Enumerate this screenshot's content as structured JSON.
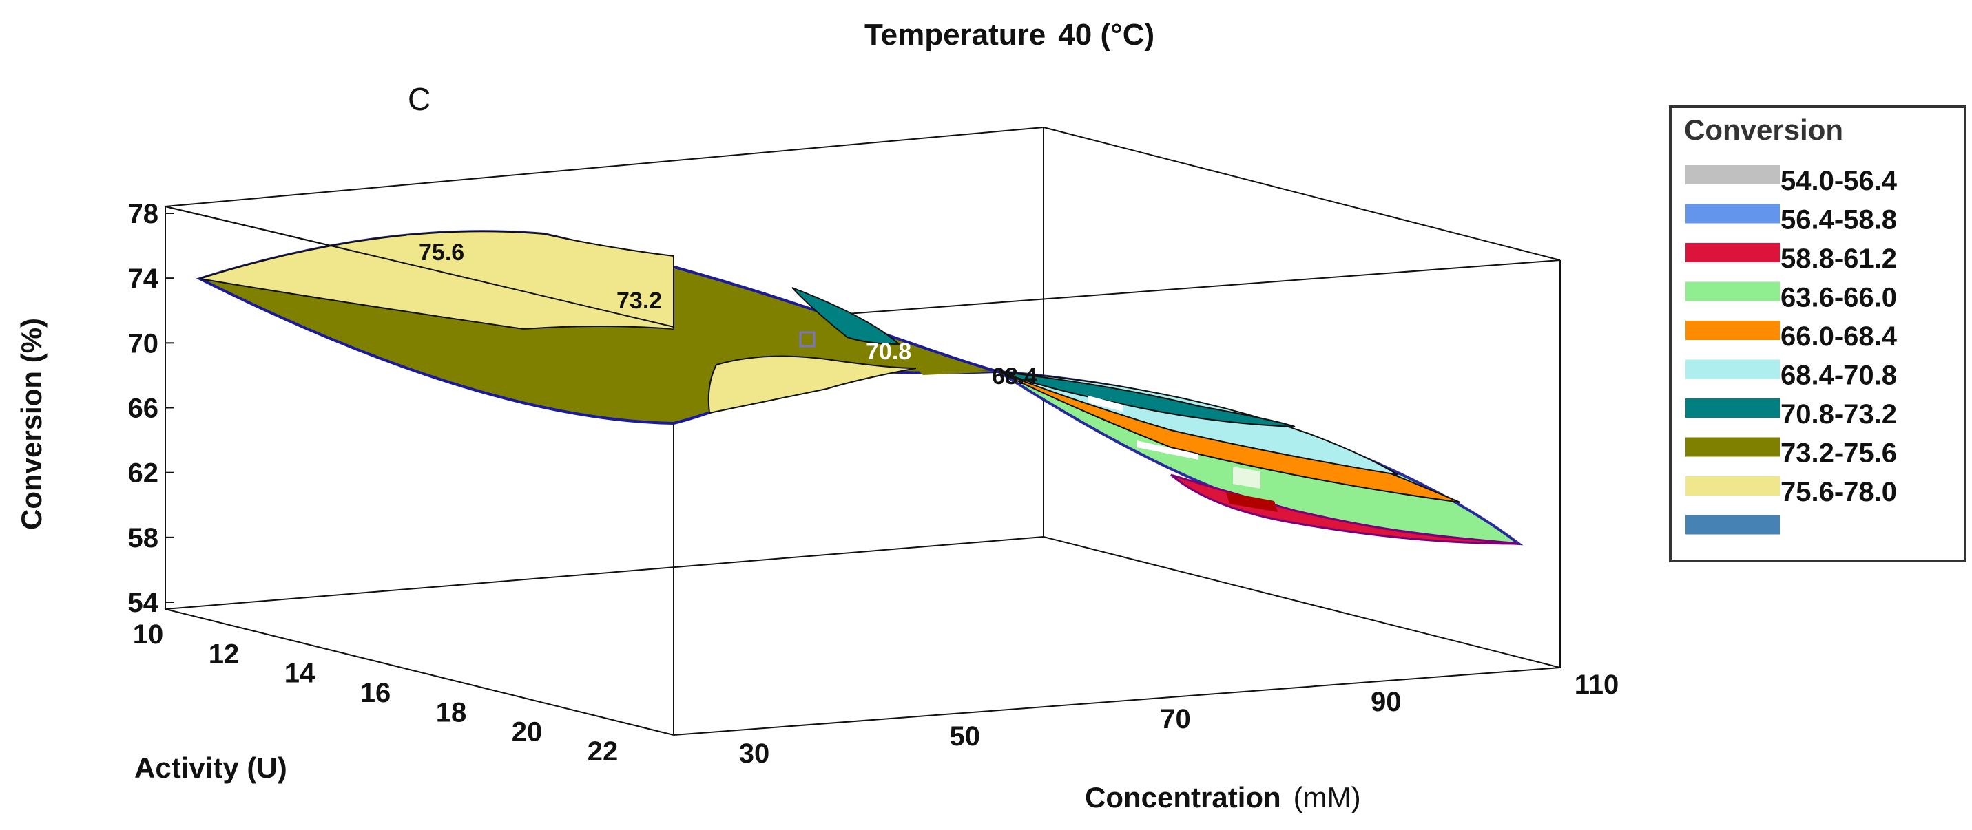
{
  "chart_data": {
    "type": "surface",
    "title_prefix": "Temperature",
    "title_value": "40 (°C)",
    "panel_label": "C",
    "zlabel": "Conversion (%)",
    "xlabel": "Activity (U)",
    "ylabel": "Concentration",
    "ylabel_unit": "(mM)",
    "zlim": [
      54,
      78
    ],
    "xlim": [
      10,
      22
    ],
    "ylim": [
      30,
      110
    ],
    "z_ticks": [
      "78",
      "74",
      "70",
      "66",
      "62",
      "58",
      "54"
    ],
    "x_ticks": [
      "10",
      "12",
      "14",
      "16",
      "18",
      "20",
      "22"
    ],
    "y_ticks": [
      "30",
      "50",
      "70",
      "90",
      "110"
    ],
    "contour_labels": [
      "75.6",
      "73.2",
      "70.8",
      "68.4"
    ],
    "legend": {
      "title": "Conversion",
      "entries": [
        {
          "range": "54.0-56.4",
          "color": "#c0c0c0"
        },
        {
          "range": "56.4-58.8",
          "color": "#6495ed"
        },
        {
          "range": "58.8-61.2",
          "color": "#dc143c"
        },
        {
          "range": "63.6-66.0",
          "color": "#90ee90"
        },
        {
          "range": "66.0-68.4",
          "color": "#ff8c00"
        },
        {
          "range": "68.4-70.8",
          "color": "#afeeee"
        },
        {
          "range": "70.8-73.2",
          "color": "#008080"
        },
        {
          "range": "73.2-75.6",
          "color": "#808000"
        },
        {
          "range": "75.6-78.0",
          "color": "#f0e68c"
        }
      ],
      "extra_swatch_color": "#4682b4"
    }
  }
}
